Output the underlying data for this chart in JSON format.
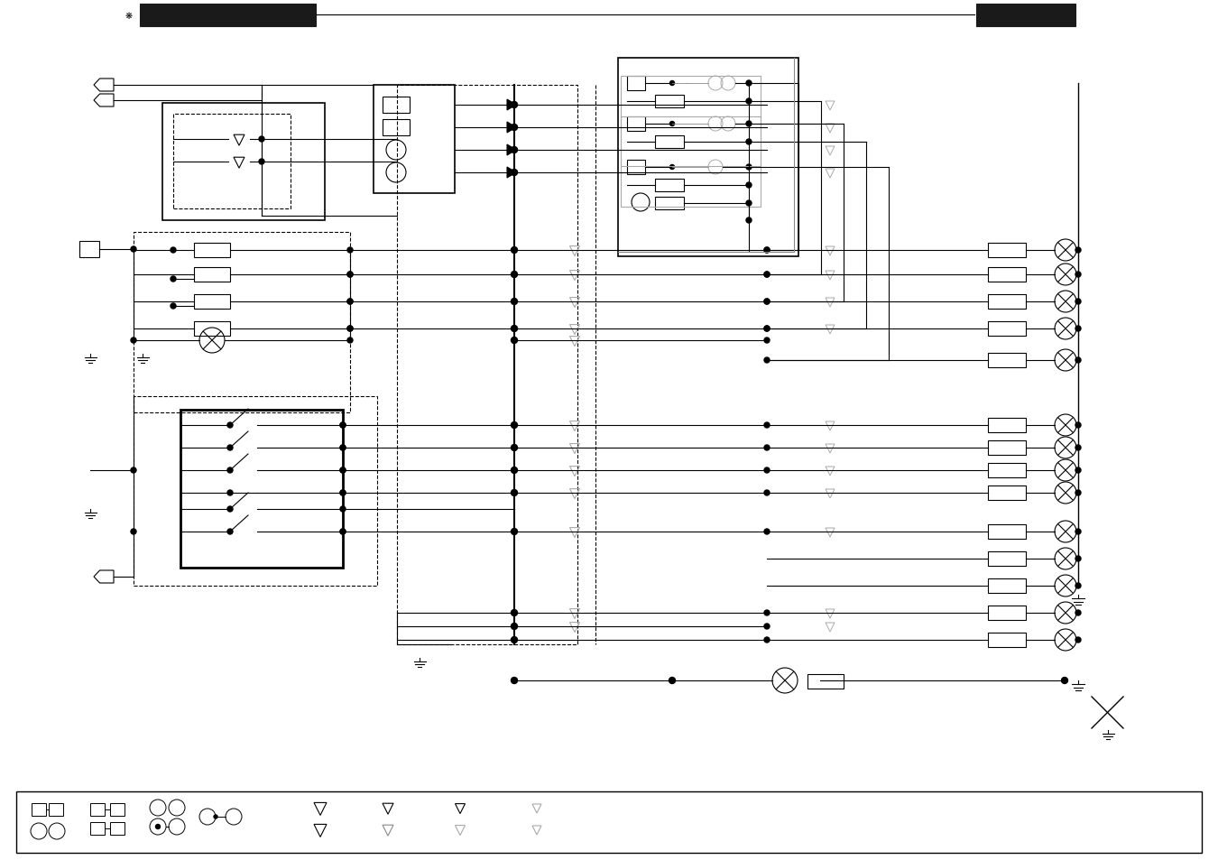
{
  "fig_width": 13.5,
  "fig_height": 9.54,
  "dpi": 100,
  "bg_color": "#ffffff"
}
